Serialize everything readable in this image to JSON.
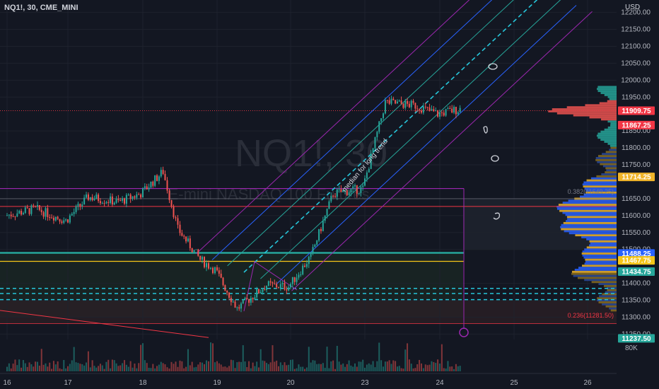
{
  "header": {
    "symbol": "NQ1!, 30, CME_MINI",
    "currency": "USD"
  },
  "watermark": {
    "symbol": "NQ1!, 30",
    "description": "E-mini NASDAQ 100 Futures"
  },
  "colors": {
    "background": "#131722",
    "up": "#26a69a",
    "down": "#ef5350",
    "pitchfork": "#9c27b0",
    "teal_line": "#26a69a",
    "yellow_line": "#f5c518",
    "red_line": "#f23645",
    "profile_yellow": "#f0b429",
    "profile_blue": "#2962ff"
  },
  "price_axis": {
    "ticks": [
      "12200.00",
      "12150.00",
      "12100.00",
      "12050.00",
      "12000.00",
      "11950.00",
      "11850.00",
      "11800.00",
      "11750.00",
      "11650.00",
      "11600.00",
      "11550.00",
      "11500.00",
      "11400.00",
      "11350.00",
      "11300.00",
      "11250.00"
    ],
    "tags": [
      {
        "label": "11909.75",
        "value": 11909.75,
        "color": "#f23645"
      },
      {
        "label": "11867.25",
        "value": 11867.25,
        "color": "#f23645"
      },
      {
        "label": "11714.25",
        "value": 11714.25,
        "color": "#f0b429"
      },
      {
        "label": "11488.25",
        "value": 11488.25,
        "color": "#2962ff"
      },
      {
        "label": "11467.75",
        "value": 11467.75,
        "color": "#f5c518"
      },
      {
        "label": "11434.75",
        "value": 11434.75,
        "color": "#26a69a"
      },
      {
        "label": "11237.50",
        "value": 11237.5,
        "color": "#26a69a"
      }
    ],
    "volume_label": "80K"
  },
  "time_axis": {
    "labels": [
      "16",
      "17",
      "18",
      "19",
      "20",
      "23",
      "24",
      "25",
      "26"
    ]
  },
  "annotations": {
    "median_text": "median for long trend",
    "fib_label": "0.236(11281.50)",
    "fib_label2": "0.382(11649.25)"
  },
  "chart_data": {
    "type": "candlestick",
    "symbol": "NQ1!",
    "interval": "30",
    "ylim": [
      11230,
      12220
    ],
    "x_labels": [
      "16",
      "17",
      "18",
      "19",
      "20",
      "23",
      "24",
      "25",
      "26"
    ],
    "price_path": [
      {
        "time": "16",
        "close": 11600
      },
      {
        "time": "16.5",
        "close": 11620
      },
      {
        "time": "17",
        "close": 11585
      },
      {
        "time": "17.3",
        "close": 11655
      },
      {
        "time": "17.7",
        "close": 11640
      },
      {
        "time": "18",
        "close": 11665
      },
      {
        "time": "18.3",
        "close": 11730
      },
      {
        "time": "18.5",
        "close": 11560
      },
      {
        "time": "18.8",
        "close": 11470
      },
      {
        "time": "19",
        "close": 11440
      },
      {
        "time": "19.3",
        "close": 11325
      },
      {
        "time": "19.7",
        "close": 11395
      },
      {
        "time": "20",
        "close": 11390
      },
      {
        "time": "20.3",
        "close": 11480
      },
      {
        "time": "20.6",
        "close": 11665
      },
      {
        "time": "23",
        "close": 11680
      },
      {
        "time": "23.3",
        "close": 11935
      },
      {
        "time": "23.7",
        "close": 11925
      },
      {
        "time": "24",
        "close": 11900
      },
      {
        "time": "24.3",
        "close": 11915
      }
    ],
    "horizontal_levels": [
      11909.75,
      11627,
      11488.25,
      11467.75,
      11650,
      11281.5
    ],
    "volume_max": "80K"
  }
}
